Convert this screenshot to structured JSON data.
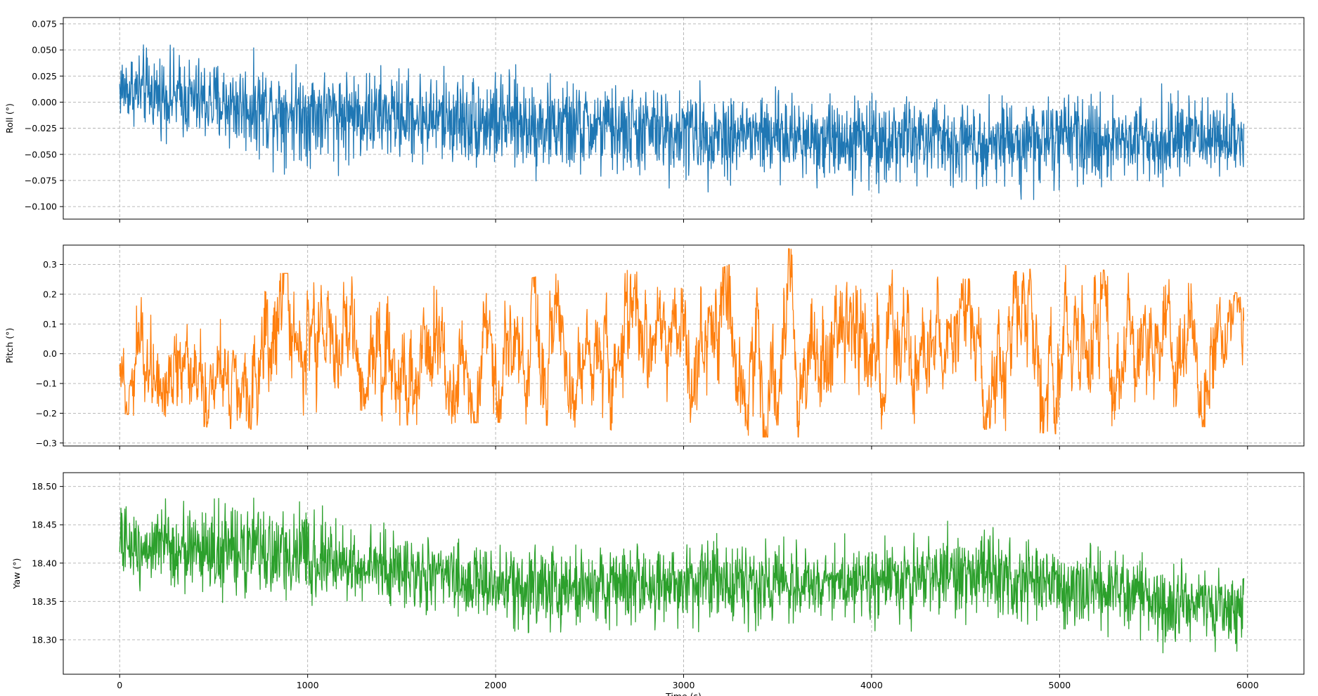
{
  "chart_data": [
    {
      "type": "line",
      "ylabel": "Roll (°)",
      "xlabel": "",
      "xlim": [
        -300,
        6300
      ],
      "ylim": [
        -0.112,
        0.081
      ],
      "xticks": [
        0,
        1000,
        2000,
        3000,
        4000,
        5000,
        6000
      ],
      "xtick_labels": [],
      "yticks": [
        -0.1,
        -0.075,
        -0.05,
        -0.025,
        0.0,
        0.025,
        0.05,
        0.075
      ],
      "ytick_labels": [
        "−0.100",
        "−0.075",
        "−0.050",
        "−0.025",
        "0.000",
        "0.025",
        "0.050",
        "0.075"
      ],
      "grid": true,
      "color": "#1f77b4",
      "series": [
        {
          "x": [
            0,
            500,
            1000,
            1500,
            2000,
            2500,
            3000,
            3500,
            4000,
            4500,
            5000,
            5500,
            5980
          ],
          "mean": [
            0.01,
            0.0,
            -0.008,
            -0.014,
            -0.019,
            -0.023,
            -0.027,
            -0.031,
            -0.034,
            -0.035,
            -0.035,
            -0.034,
            -0.034
          ],
          "upper_envelope": [
            0.072,
            0.055,
            0.048,
            0.045,
            0.045,
            0.03,
            0.025,
            0.02,
            0.02,
            0.015,
            0.015,
            0.02,
            0.015
          ],
          "lower_envelope": [
            -0.025,
            -0.06,
            -0.078,
            -0.07,
            -0.08,
            -0.09,
            -0.09,
            -0.093,
            -0.095,
            -0.093,
            -0.103,
            -0.09,
            -0.075
          ]
        }
      ]
    },
    {
      "type": "line",
      "ylabel": "Pitch (°)",
      "xlabel": "",
      "xlim": [
        -300,
        6300
      ],
      "ylim": [
        -0.31,
        0.365
      ],
      "xticks": [
        0,
        1000,
        2000,
        3000,
        4000,
        5000,
        6000
      ],
      "xtick_labels": [],
      "yticks": [
        -0.3,
        -0.2,
        -0.1,
        0.0,
        0.1,
        0.2,
        0.3
      ],
      "ytick_labels": [
        "−0.3",
        "−0.2",
        "−0.1",
        "0.0",
        "0.1",
        "0.2",
        "0.3"
      ],
      "grid": true,
      "color": "#ff7f0e",
      "series": [
        {
          "x": [
            0,
            500,
            1000,
            1500,
            2000,
            2500,
            3000,
            3500,
            4000,
            4500,
            5000,
            5500,
            5980
          ],
          "mean": [
            0.0,
            0.0,
            0.0,
            0.0,
            0.0,
            0.0,
            0.0,
            0.0,
            0.0,
            0.0,
            0.0,
            0.0,
            0.0
          ],
          "upper_envelope": [
            0.24,
            0.27,
            0.27,
            0.31,
            0.22,
            0.31,
            0.24,
            0.36,
            0.3,
            0.25,
            0.3,
            0.26,
            0.2
          ],
          "lower_envelope": [
            -0.2,
            -0.25,
            -0.26,
            -0.24,
            -0.23,
            -0.25,
            -0.28,
            -0.28,
            -0.28,
            -0.25,
            -0.27,
            -0.24,
            -0.25
          ]
        }
      ]
    },
    {
      "type": "line",
      "ylabel": "Yaw (°)",
      "xlabel": "Time (s)",
      "xlim": [
        -300,
        6300
      ],
      "ylim": [
        18.255,
        18.518
      ],
      "xticks": [
        0,
        1000,
        2000,
        3000,
        4000,
        5000,
        6000
      ],
      "xtick_labels": [
        "0",
        "1000",
        "2000",
        "3000",
        "4000",
        "5000",
        "6000"
      ],
      "yticks": [
        18.3,
        18.35,
        18.4,
        18.45,
        18.5
      ],
      "ytick_labels": [
        "18.30",
        "18.35",
        "18.40",
        "18.45",
        "18.50"
      ],
      "grid": true,
      "color": "#2ca02c",
      "series": [
        {
          "x": [
            0,
            500,
            1000,
            1500,
            2000,
            2500,
            3000,
            3500,
            4000,
            4500,
            5000,
            5500,
            5980
          ],
          "mean": [
            18.425,
            18.415,
            18.405,
            18.39,
            18.375,
            18.37,
            18.375,
            18.375,
            18.38,
            18.385,
            18.375,
            18.355,
            18.345
          ],
          "upper_envelope": [
            18.49,
            18.5,
            18.49,
            18.46,
            18.43,
            18.44,
            18.45,
            18.44,
            18.45,
            18.46,
            18.44,
            18.42,
            18.4
          ],
          "lower_envelope": [
            18.36,
            18.34,
            18.34,
            18.32,
            18.3,
            18.29,
            18.3,
            18.3,
            18.3,
            18.3,
            18.3,
            18.28,
            18.27
          ]
        }
      ]
    }
  ]
}
